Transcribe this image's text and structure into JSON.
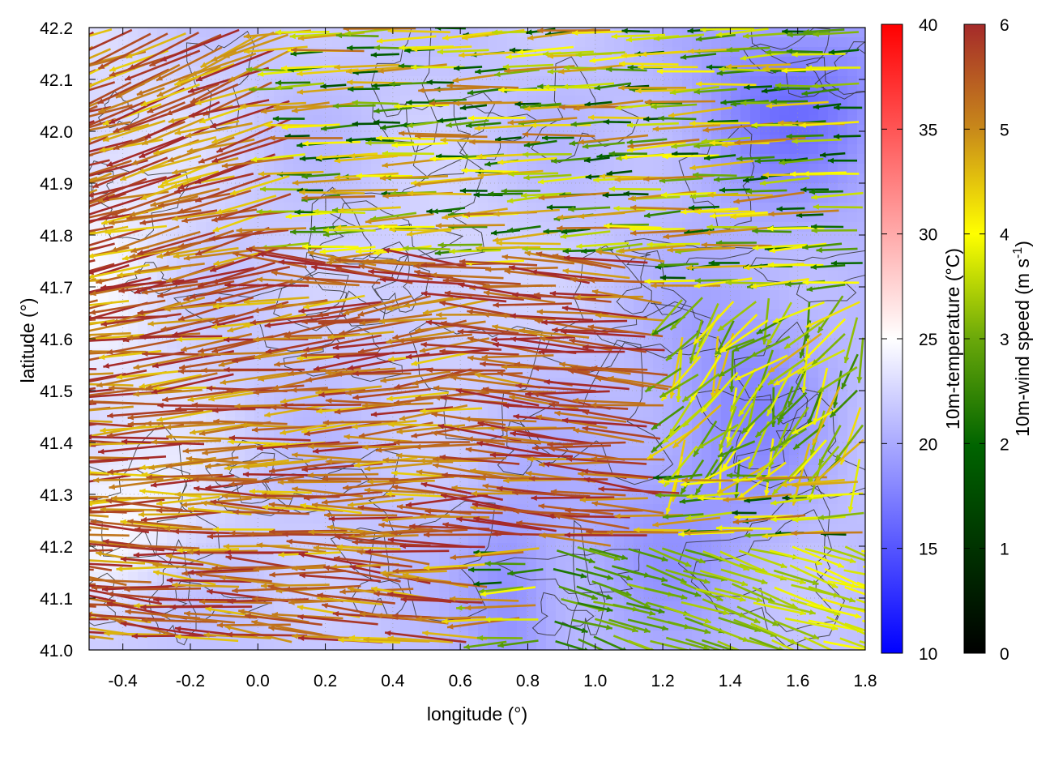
{
  "chart_data": {
    "type": "vector-field",
    "xlabel": "longitude (°)",
    "ylabel": "latitude (°)",
    "xlim": [
      -0.5,
      1.8
    ],
    "ylim": [
      41.0,
      42.2
    ],
    "x_ticks": [
      "-0.4",
      "-0.2",
      "0.0",
      "0.2",
      "0.4",
      "0.6",
      "0.8",
      "1.0",
      "1.2",
      "1.4",
      "1.6",
      "1.8"
    ],
    "y_ticks": [
      "41.0",
      "41.1",
      "41.2",
      "41.3",
      "41.4",
      "41.5",
      "41.6",
      "41.7",
      "41.8",
      "41.9",
      "42.0",
      "42.1",
      "42.2"
    ],
    "grid": true,
    "background_field": {
      "label": "10m-temperature (°C)",
      "range": [
        10,
        40
      ],
      "ticks": [
        "10",
        "15",
        "20",
        "25",
        "30",
        "35",
        "40"
      ],
      "colors": [
        "#0000ff",
        "#ffffff",
        "#ff0000"
      ]
    },
    "vector_field": {
      "label_main": "10m-wind speed (m s",
      "label_sup": "-1",
      "label_end": ")",
      "range": [
        0,
        6
      ],
      "ticks": [
        "0",
        "1",
        "2",
        "3",
        "4",
        "5",
        "6"
      ],
      "colors": [
        "#000000",
        "#006400",
        "#6aa80a",
        "#ffff00",
        "#c8891a",
        "#a52a2a"
      ]
    },
    "contours": true
  }
}
